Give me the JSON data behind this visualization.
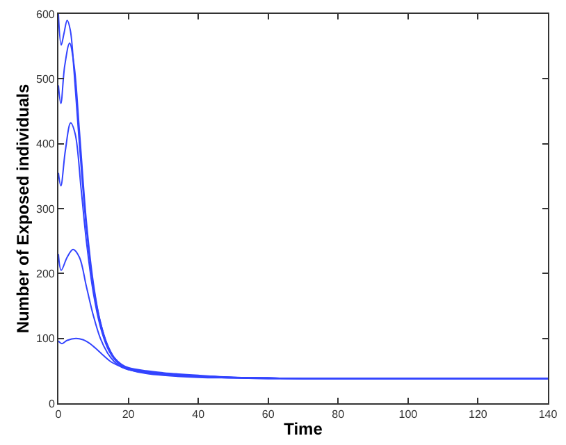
{
  "chart_data": {
    "type": "line",
    "xlabel": "Time",
    "ylabel": "Number of Exposed individuals",
    "xlim": [
      0,
      140
    ],
    "xticks": [
      0,
      20,
      40,
      60,
      80,
      100,
      120,
      140
    ],
    "ylim": [
      0,
      600
    ],
    "yticks": [
      0,
      100,
      200,
      300,
      400,
      500,
      600
    ],
    "marker": "none",
    "line_style": "solid",
    "series": [
      {
        "color": "#3344ff",
        "x": [
          0,
          0.8,
          1.6,
          2.5,
          3.4,
          4.5,
          6,
          8,
          10,
          12,
          14,
          16,
          18,
          20,
          25,
          30,
          40,
          50,
          60,
          70,
          80,
          100,
          120,
          140
        ],
        "values": [
          600,
          552,
          570,
          590,
          575,
          510,
          400,
          270,
          180,
          125,
          90,
          70,
          60,
          55,
          50,
          47,
          43,
          40,
          39,
          38,
          38,
          38,
          38,
          38
        ]
      },
      {
        "color": "#3344ff",
        "x": [
          0,
          0.7,
          1.8,
          3.2,
          4.5,
          6,
          8,
          10,
          12,
          14,
          16,
          18,
          20,
          25,
          30,
          40,
          50,
          60,
          70,
          80,
          100,
          120,
          140
        ],
        "values": [
          490,
          462,
          520,
          555,
          520,
          420,
          280,
          185,
          125,
          90,
          70,
          60,
          54,
          49,
          46,
          42,
          40,
          39,
          38,
          38,
          38,
          38,
          38
        ]
      },
      {
        "color": "#3344ff",
        "x": [
          0,
          0.7,
          2,
          3.5,
          4.8,
          6.5,
          8,
          10,
          12,
          14,
          16,
          18,
          20,
          25,
          30,
          40,
          50,
          60,
          70,
          80,
          100,
          120,
          140
        ],
        "values": [
          355,
          335,
          390,
          432,
          415,
          330,
          250,
          170,
          118,
          86,
          68,
          58,
          53,
          48,
          45,
          42,
          40,
          39,
          38,
          38,
          38,
          38,
          38
        ]
      },
      {
        "color": "#3344ff",
        "x": [
          0,
          0.8,
          2.5,
          4.2,
          6,
          8,
          10,
          12,
          14,
          16,
          18,
          20,
          25,
          30,
          40,
          50,
          60,
          70,
          80,
          100,
          120,
          140
        ],
        "values": [
          230,
          205,
          225,
          237,
          225,
          180,
          135,
          100,
          78,
          64,
          56,
          52,
          47,
          44,
          41,
          39,
          38,
          38,
          38,
          38,
          38,
          38
        ]
      },
      {
        "color": "#3344ff",
        "x": [
          0,
          1,
          2.5,
          5,
          7,
          9,
          11,
          13,
          15,
          18,
          20,
          25,
          30,
          40,
          50,
          60,
          70,
          80,
          100,
          120,
          140
        ],
        "values": [
          96,
          92,
          97,
          100,
          98,
          92,
          83,
          73,
          64,
          56,
          52,
          46,
          43,
          40,
          39,
          38,
          38,
          38,
          38,
          38,
          38
        ]
      }
    ]
  }
}
